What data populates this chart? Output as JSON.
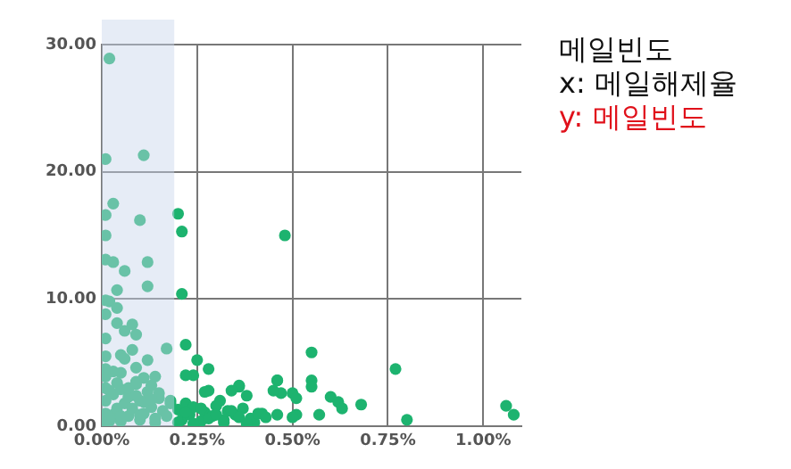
{
  "chart_data": {
    "type": "scatter",
    "annotations": [
      "메일빈도",
      "x: 메일해제율",
      "y: 메일빈도"
    ],
    "xlim": [
      0,
      1.1
    ],
    "ylim": [
      0,
      30
    ],
    "xticks": [
      {
        "value": 0,
        "label": "0.00%"
      },
      {
        "value": 0.25,
        "label": "0.25%"
      },
      {
        "value": 0.5,
        "label": "0.50%"
      },
      {
        "value": 0.75,
        "label": "0.75%"
      },
      {
        "value": 1,
        "label": "1.00%"
      }
    ],
    "yticks": [
      {
        "value": 0,
        "label": "0.00"
      },
      {
        "value": 10,
        "label": "10.00"
      },
      {
        "value": 20,
        "label": "20.00"
      },
      {
        "value": 30,
        "label": "30.00"
      }
    ],
    "grid": true,
    "legend": false,
    "marker": "circle",
    "bands": [
      {
        "axis": "x",
        "from": 0,
        "to": 0.19,
        "color": "#c8d4ec"
      }
    ],
    "series": [
      {
        "color": "#1db36f",
        "x": [
          0.02,
          0.01,
          0.11,
          0.03,
          0.01,
          0.1,
          0.2,
          0.21,
          0.01,
          0.01,
          0.03,
          0.12,
          0.06,
          0.04,
          0.12,
          0.21,
          0.01,
          0.02,
          0.04,
          0.01,
          0.04,
          0.08,
          0.09,
          0.01,
          0.17,
          0.22,
          0.05,
          0.06,
          0.12,
          0.25,
          0.28,
          0.01,
          0.09,
          0.14,
          0.24,
          0.03,
          0.01,
          0.46,
          0.47,
          0.36,
          0.28,
          0.48,
          0.55,
          0.77,
          0.55,
          0.46,
          0.55,
          0.45,
          0.5,
          0.51,
          0.6,
          0.62,
          0.63,
          0.68,
          0.57,
          0.51,
          0.5,
          0.46,
          0.4,
          0.42,
          0.8,
          1.06,
          1.08,
          0.38,
          0.36,
          0.34,
          0.31,
          0.27,
          0.22,
          0.01,
          0.01,
          0.01,
          0.01,
          0.01,
          0.03,
          0.03,
          0.04,
          0.05,
          0.05,
          0.06,
          0.07,
          0.07,
          0.09,
          0.1,
          0.1,
          0.11,
          0.12,
          0.13,
          0.14,
          0.15,
          0.16,
          0.17,
          0.18,
          0.02,
          0.04,
          0.08,
          0.1,
          0.14,
          0.18,
          0.2,
          0.21,
          0.22,
          0.23,
          0.24,
          0.26,
          0.27,
          0.29,
          0.3,
          0.32,
          0.33,
          0.35,
          0.37,
          0.39,
          0.41,
          0.43,
          0.2,
          0.22,
          0.24,
          0.26,
          0.28,
          0.3,
          0.32,
          0.34,
          0.36,
          0.38,
          0.05,
          0.07,
          0.09,
          0.11,
          0.13,
          0.15,
          0.02,
          0.06,
          0.08,
          0.11,
          0.13,
          0.05,
          0.09
        ],
        "values": [
          28.9,
          21.0,
          21.3,
          17.5,
          16.6,
          16.2,
          16.7,
          15.3,
          15.0,
          13.1,
          12.9,
          12.9,
          12.2,
          10.7,
          11.0,
          10.4,
          9.9,
          9.8,
          9.3,
          8.8,
          8.1,
          8.0,
          7.2,
          6.9,
          6.1,
          6.4,
          5.6,
          5.3,
          5.2,
          5.2,
          4.5,
          5.5,
          4.6,
          3.9,
          4.0,
          4.3,
          3.9,
          3.6,
          2.6,
          3.1,
          2.8,
          15.0,
          5.8,
          4.5,
          3.6,
          3.6,
          3.1,
          2.8,
          2.6,
          2.2,
          2.3,
          1.9,
          1.4,
          1.7,
          0.9,
          0.9,
          0.7,
          0.9,
          0.3,
          1.0,
          0.5,
          1.6,
          0.9,
          2.4,
          3.2,
          2.8,
          2.0,
          2.7,
          4.0,
          0.3,
          1.0,
          2.0,
          3.0,
          4.5,
          0.9,
          2.5,
          1.4,
          0.4,
          2.9,
          1.8,
          0.8,
          2.3,
          3.5,
          0.5,
          2.0,
          1.0,
          2.7,
          1.5,
          0.6,
          2.2,
          1.2,
          0.8,
          1.8,
          0.4,
          3.4,
          1.4,
          0.9,
          0.3,
          2.0,
          1.3,
          0.5,
          1.8,
          0.9,
          1.5,
          0.4,
          1.1,
          0.8,
          1.6,
          0.5,
          1.2,
          0.9,
          1.4,
          0.6,
          1.0,
          0.7,
          0.3,
          1.1,
          0.2,
          1.4,
          0.6,
          0.9,
          0.3,
          1.2,
          0.7,
          0.2,
          0.8,
          3.0,
          2.4,
          1.9,
          3.2,
          2.6,
          2.8,
          7.5,
          6.0,
          3.8,
          2.1,
          4.2,
          3.3
        ]
      }
    ]
  }
}
